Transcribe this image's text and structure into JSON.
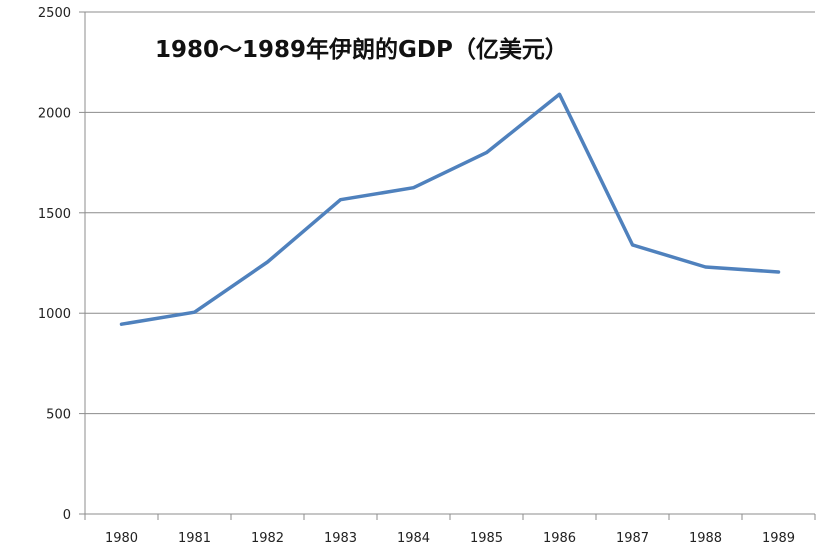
{
  "chart_data": {
    "type": "line",
    "title": "1980～1989年伊朗的GDP（亿美元）",
    "xlabel": "",
    "ylabel": "",
    "categories": [
      "1980",
      "1981",
      "1982",
      "1983",
      "1984",
      "1985",
      "1986",
      "1987",
      "1988",
      "1989"
    ],
    "series": [
      {
        "values": [
          945,
          1005,
          1255,
          1565,
          1625,
          1800,
          2090,
          1340,
          1230,
          1205
        ]
      }
    ],
    "ylim": [
      0,
      2500
    ],
    "yticks": [
      "0",
      "500",
      "1000",
      "1500",
      "2000",
      "2500"
    ],
    "grid": true,
    "legend": "none",
    "line_color": "#4F81BD"
  }
}
